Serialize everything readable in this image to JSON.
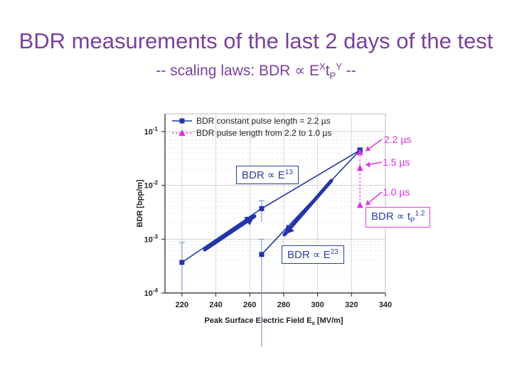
{
  "slide": {
    "title": "BDR measurements of the last 2 days of the test",
    "subtitle_prefix": "-- scaling laws: BDR ∝ E",
    "subtitle_exp_x": "X",
    "subtitle_t": "t",
    "subtitle_sub_p": "P",
    "subtitle_exp_y": "Y",
    "subtitle_suffix": " --"
  },
  "colors": {
    "title": "#7b3f9e",
    "series_blue": "#2233aa",
    "series_magenta": "#e030e0"
  },
  "annotations": {
    "scaling_e13": "BDR ∝ E",
    "scaling_e13_exp": "13",
    "scaling_e23": "BDR ∝ E",
    "scaling_e23_exp": "23",
    "scaling_tp": "BDR ∝ t",
    "scaling_tp_sub": "P",
    "scaling_tp_exp": "1.2",
    "pulse_22": "2.2 µs",
    "pulse_15": "1.5 µs",
    "pulse_10": "1.0 µs"
  },
  "chart_data": {
    "type": "scatter",
    "xlabel": "Peak Surface Electric Field E",
    "xlabel_sub": "s",
    "xlabel_unit": " [MV/m]",
    "ylabel": "BDR [bpp/m]",
    "x_scale": "linear",
    "y_scale": "log",
    "xlim": [
      210,
      340
    ],
    "ylim": [
      0.0001,
      0.2
    ],
    "x_ticks": [
      220,
      240,
      260,
      280,
      300,
      320,
      340
    ],
    "y_ticks": [
      {
        "base": "10",
        "exp": "-4",
        "value": 0.0001
      },
      {
        "base": "10",
        "exp": "-3",
        "value": 0.001
      },
      {
        "base": "10",
        "exp": "-2",
        "value": 0.01
      },
      {
        "base": "10",
        "exp": "-1",
        "value": 0.1
      }
    ],
    "legend_position": "top-left",
    "series": [
      {
        "name": "BDR constant pulse length = 2.2 µs",
        "marker": "square",
        "line": "solid",
        "points": [
          {
            "x": 220,
            "y": 0.00037,
            "err_lo": 0.00011,
            "err_hi": 0.00087
          },
          {
            "x": 267,
            "y": 0.0037,
            "err_lo": 0.0021,
            "err_hi": 0.0052
          },
          {
            "x": 325,
            "y": 0.045,
            "err_lo": 0.04,
            "err_hi": 0.05
          }
        ]
      },
      {
        "name": "BDR pulse length from 2.2 to 1.0 µs",
        "marker": "triangle",
        "line": "dotted",
        "points": [
          {
            "x": 325,
            "y": 0.041
          },
          {
            "x": 325,
            "y": 0.021
          },
          {
            "x": 325,
            "y": 0.0043
          }
        ]
      },
      {
        "name": "",
        "marker": "square",
        "line": "solid",
        "points": [
          {
            "x": 267,
            "y": 0.00052,
            "err_lo": 1e-05,
            "err_hi": 0.001
          },
          {
            "x": 325,
            "y": 0.045
          }
        ]
      }
    ]
  }
}
